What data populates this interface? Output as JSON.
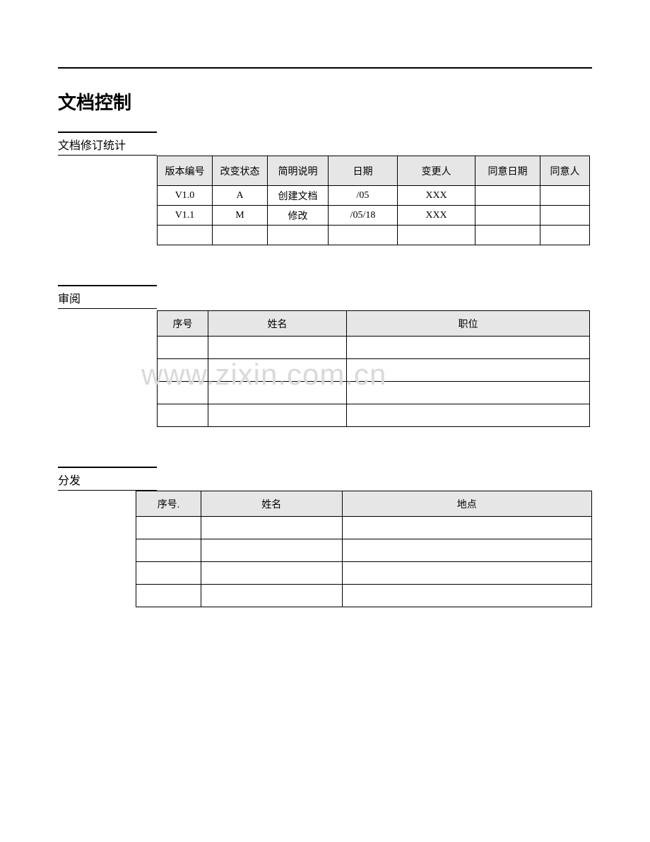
{
  "colors": {
    "bg": "#ffffff",
    "text": "#000000",
    "header_fill": "#e6e6e6",
    "border": "#000000",
    "watermark": "#d9d9d9"
  },
  "title": "文档控制",
  "watermark": "www.zixin.com.cn",
  "sections": {
    "revision": {
      "label": "文档修订统计",
      "columns": [
        "版本编号",
        "改变状态",
        "简明说明",
        "日期",
        "变更人",
        "同意日期",
        "同意人"
      ],
      "rows": [
        [
          "V1.0",
          "A",
          "创建文档",
          "/05",
          "XXX",
          "",
          ""
        ],
        [
          "V1.1",
          "M",
          "修改",
          "/05/18",
          "XXX",
          "",
          ""
        ],
        [
          "",
          "",
          "",
          "",
          "",
          "",
          ""
        ]
      ]
    },
    "review": {
      "label": "审阅",
      "columns": [
        "序号",
        "姓名",
        "职位"
      ],
      "rows": [
        [
          "",
          "",
          ""
        ],
        [
          "",
          "",
          ""
        ],
        [
          "",
          "",
          ""
        ],
        [
          "",
          "",
          ""
        ]
      ]
    },
    "distribute": {
      "label": "分发",
      "columns": [
        "序号.",
        "姓名",
        "地点"
      ],
      "rows": [
        [
          "",
          "",
          ""
        ],
        [
          "",
          "",
          ""
        ],
        [
          "",
          "",
          ""
        ],
        [
          "",
          "",
          ""
        ]
      ]
    }
  }
}
